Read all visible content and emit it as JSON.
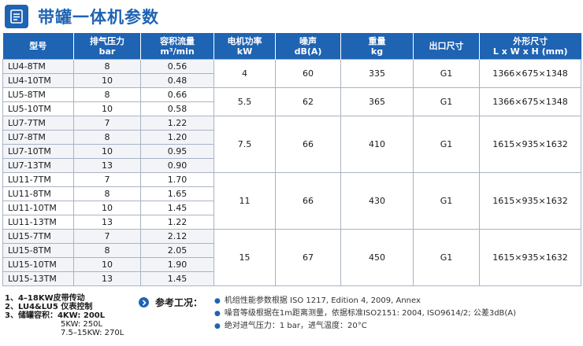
{
  "header": {
    "title": "带罐一体机参数",
    "icon": "document-list-icon"
  },
  "table": {
    "columns": [
      {
        "line1": "型号",
        "line2": ""
      },
      {
        "line1": "排气压力",
        "line2": "bar"
      },
      {
        "line1": "容积流量",
        "line2": "m³/min"
      },
      {
        "line1": "电机功率",
        "line2": "kW"
      },
      {
        "line1": "噪声",
        "line2": "dB(A)"
      },
      {
        "line1": "重量",
        "line2": "kg"
      },
      {
        "line1": "出口尺寸",
        "line2": ""
      },
      {
        "line1": "外形尺寸",
        "line2": "L x W x H (mm)"
      }
    ],
    "groups": [
      {
        "power": "4",
        "noise": "60",
        "weight": "335",
        "outlet": "G1",
        "dimensions": "1366×675×1348",
        "rows": [
          {
            "model": "LU4-8TM",
            "pressure": "8",
            "flow": "0.56"
          },
          {
            "model": "LU4-10TM",
            "pressure": "10",
            "flow": "0.48"
          }
        ]
      },
      {
        "power": "5.5",
        "noise": "62",
        "weight": "365",
        "outlet": "G1",
        "dimensions": "1366×675×1348",
        "rows": [
          {
            "model": "LU5-8TM",
            "pressure": "8",
            "flow": "0.66"
          },
          {
            "model": "LU5-10TM",
            "pressure": "10",
            "flow": "0.58"
          }
        ]
      },
      {
        "power": "7.5",
        "noise": "66",
        "weight": "410",
        "outlet": "G1",
        "dimensions": "1615×935×1632",
        "rows": [
          {
            "model": "LU7-7TM",
            "pressure": "7",
            "flow": "1.22"
          },
          {
            "model": "LU7-8TM",
            "pressure": "8",
            "flow": "1.20"
          },
          {
            "model": "LU7-10TM",
            "pressure": "10",
            "flow": "0.95"
          },
          {
            "model": "LU7-13TM",
            "pressure": "13",
            "flow": "0.90"
          }
        ]
      },
      {
        "power": "11",
        "noise": "66",
        "weight": "430",
        "outlet": "G1",
        "dimensions": "1615×935×1632",
        "rows": [
          {
            "model": "LU11-7TM",
            "pressure": "7",
            "flow": "1.70"
          },
          {
            "model": "LU11-8TM",
            "pressure": "8",
            "flow": "1.65"
          },
          {
            "model": "LU11-10TM",
            "pressure": "10",
            "flow": "1.45"
          },
          {
            "model": "LU11-13TM",
            "pressure": "13",
            "flow": "1.22"
          }
        ]
      },
      {
        "power": "15",
        "noise": "67",
        "weight": "450",
        "outlet": "G1",
        "dimensions": "1615×935×1632",
        "rows": [
          {
            "model": "LU15-7TM",
            "pressure": "7",
            "flow": "2.12"
          },
          {
            "model": "LU15-8TM",
            "pressure": "8",
            "flow": "2.05"
          },
          {
            "model": "LU15-10TM",
            "pressure": "10",
            "flow": "1.90"
          },
          {
            "model": "LU15-13TM",
            "pressure": "13",
            "flow": "1.45"
          }
        ]
      }
    ]
  },
  "notes": {
    "line1": "1、4–18KW皮带传动",
    "line2": "2、LU4&LU5 仪表控制",
    "line3": "3、储罐容积：4KW: 200L",
    "line4": "5KW: 250L",
    "line5": "7.5–15KW: 270L"
  },
  "reference": {
    "label": "参考工况：",
    "items": [
      "机组性能参数根据 ISO 1217, Edition 4, 2009, Annex",
      "噪音等级根据在1m距离测量，依据标准ISO2151: 2004, ISO9614/2; 公差3dB(A)",
      "绝对进气压力：1 bar，进气温度：20°C"
    ]
  },
  "colors": {
    "accent": "#1f63b3",
    "row_alt": "#f2f4f8",
    "border": "#a9b3c4"
  }
}
